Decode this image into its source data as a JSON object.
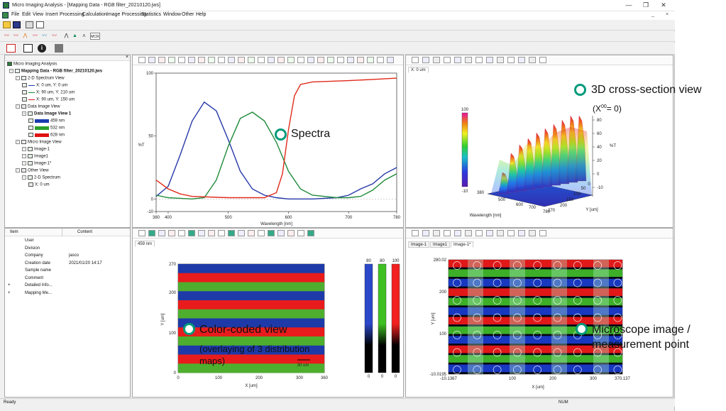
{
  "window": {
    "title": "Micro Imaging Analysis - [Mapping Data - RGB filter_20210120.jws]",
    "minimize": "—",
    "restore": "❒",
    "close": "✕"
  },
  "menu": [
    "File",
    "Edit",
    "View",
    "Insert",
    "Processing",
    "Calculation",
    "Image Processing",
    "Statistics",
    "Window",
    "Other",
    "Help"
  ],
  "menu_child_controls": [
    "_",
    "×"
  ],
  "tree": {
    "root": "Micro Imaging Analysis",
    "nodes": [
      {
        "label": "Mapping Data - RGB filter_20210120.jws",
        "level": 0,
        "bold": true
      },
      {
        "label": "2-D Spectrum View",
        "level": 1
      },
      {
        "label": "X: 0 um, Y: 0 um",
        "level": 2,
        "color": "#1a3cb0"
      },
      {
        "label": "X: 90 um, Y: 210 um",
        "level": 2,
        "color": "#1a8a2a"
      },
      {
        "label": "X: 90 um, Y: 150 um",
        "level": 2,
        "color": "#d81a1a"
      },
      {
        "label": "Data Image View",
        "level": 1
      },
      {
        "label": "Data Image View 1",
        "level": 2,
        "bold": true
      },
      {
        "label": "459 nm",
        "level": 3,
        "color": "#1a3cb0"
      },
      {
        "label": "532 nm",
        "level": 3,
        "color": "#2aa02a"
      },
      {
        "label": "628 nm",
        "level": 3,
        "color": "#e01010"
      },
      {
        "label": "Micro Image View",
        "level": 1
      },
      {
        "label": "Image-1",
        "level": 2
      },
      {
        "label": "Image1",
        "level": 2
      },
      {
        "label": "Image-1*",
        "level": 2
      },
      {
        "label": "Other View",
        "level": 1
      },
      {
        "label": "2-D Spectrum",
        "level": 2
      },
      {
        "label": "X: 0 um",
        "level": 3
      }
    ]
  },
  "props": {
    "headers": [
      "Item",
      "Content"
    ],
    "rows": [
      {
        "item": "User",
        "content": ""
      },
      {
        "item": "Division",
        "content": ""
      },
      {
        "item": "Company",
        "content": "jasco"
      },
      {
        "item": "Creation date",
        "content": "2021/01/20 14:17"
      },
      {
        "item": "Sample name",
        "content": ""
      },
      {
        "item": "Comment",
        "content": ""
      },
      {
        "item": "Detailed Info...",
        "content": "",
        "expander": "+"
      },
      {
        "item": "Mapping Me...",
        "content": "",
        "expander": "+"
      }
    ]
  },
  "panes": {
    "cross_section_tab": "X: 0 um",
    "color_view_tab": "459 nm",
    "micro_tabs": [
      "Image-1",
      "Image1",
      "Image-1*"
    ]
  },
  "status": {
    "left": "Ready",
    "right": "NUM"
  },
  "annotations": {
    "spectra": "Spectra",
    "cross_section": "3D cross-section view",
    "cross_section_sub": "(X",
    "cross_section_sub2": "= 0)",
    "cross_section_sup": "00",
    "color_coded_1": "Color-coded view",
    "color_coded_2": "(overlaying of 3 distribution",
    "color_coded_3": "maps)",
    "microscope_1": "Microscope image /",
    "microscope_2": "measurement point"
  },
  "spectrum_chart": {
    "ylabel": "%T",
    "xlabel": "Wavelength [nm]",
    "xlim": [
      380,
      780
    ],
    "ylim": [
      -10,
      100
    ],
    "xticks": [
      380,
      400,
      500,
      600,
      700,
      780
    ],
    "yticks": [
      100,
      50,
      0,
      -10
    ],
    "series": [
      {
        "color": "#2638a8",
        "points": [
          [
            380,
            2
          ],
          [
            400,
            10
          ],
          [
            420,
            35
          ],
          [
            440,
            62
          ],
          [
            460,
            77
          ],
          [
            480,
            70
          ],
          [
            500,
            47
          ],
          [
            520,
            22
          ],
          [
            540,
            8
          ],
          [
            560,
            3
          ],
          [
            580,
            1
          ],
          [
            600,
            0
          ],
          [
            640,
            0
          ],
          [
            680,
            1
          ],
          [
            700,
            3
          ],
          [
            720,
            8
          ],
          [
            740,
            12
          ],
          [
            760,
            20
          ],
          [
            780,
            25
          ]
        ]
      },
      {
        "color": "#1f8a3a",
        "points": [
          [
            380,
            3
          ],
          [
            400,
            1
          ],
          [
            440,
            0
          ],
          [
            460,
            1
          ],
          [
            480,
            15
          ],
          [
            500,
            42
          ],
          [
            520,
            64
          ],
          [
            540,
            69
          ],
          [
            560,
            62
          ],
          [
            580,
            45
          ],
          [
            600,
            22
          ],
          [
            620,
            8
          ],
          [
            640,
            3
          ],
          [
            660,
            2
          ],
          [
            680,
            1
          ],
          [
            700,
            1
          ],
          [
            720,
            2
          ],
          [
            740,
            7
          ],
          [
            760,
            15
          ],
          [
            780,
            20
          ]
        ]
      },
      {
        "color": "#e02a1a",
        "points": [
          [
            380,
            15
          ],
          [
            400,
            8
          ],
          [
            420,
            4
          ],
          [
            440,
            2
          ],
          [
            500,
            1
          ],
          [
            560,
            1
          ],
          [
            580,
            5
          ],
          [
            590,
            20
          ],
          [
            600,
            55
          ],
          [
            610,
            82
          ],
          [
            620,
            91
          ],
          [
            640,
            93
          ],
          [
            700,
            94
          ],
          [
            740,
            95
          ],
          [
            780,
            96
          ]
        ]
      }
    ]
  },
  "cross_section_chart": {
    "zlabel": "%T",
    "xlabel": "Wavelength [nm]",
    "ylabel": "Y [um]",
    "colorbar": {
      "max": "100",
      "min": "-10"
    },
    "z_ticks": [
      "80",
      "60",
      "40",
      "20",
      "0",
      "-10"
    ],
    "x_ticks": [
      "380",
      "500",
      "600",
      "700",
      "780"
    ],
    "y_ticks": [
      "270",
      "200",
      "150",
      "100",
      "50",
      "0"
    ]
  },
  "color_coded_chart": {
    "xlabel": "X [um]",
    "ylabel": "Y [um]",
    "xticks": [
      "0",
      "100",
      "200",
      "300",
      "360"
    ],
    "yticks": [
      "270",
      "200",
      "100",
      "0"
    ],
    "scalebar": "30 um",
    "bands": [
      "#1d3aa8",
      "#e81c1c",
      "#4eae2e",
      "#1d3aa8",
      "#e81c1c",
      "#4eae2e",
      "#1d3aa8",
      "#e81c1c",
      "#4eae2e",
      "#1d3aa8",
      "#e81c1c",
      "#4eae2e"
    ],
    "colorbars": [
      {
        "color": "#2a48c8",
        "top": "80",
        "bottom": "0"
      },
      {
        "color": "#3ec022",
        "top": "80",
        "bottom": "0"
      },
      {
        "color": "#f22020",
        "top": "100",
        "bottom": "0"
      }
    ]
  },
  "microscope_chart": {
    "xlabel": "X [um]",
    "ylabel": "Y [um]",
    "xticks": [
      "-10.1367",
      "100",
      "200",
      "300",
      "370.137"
    ],
    "yticks": [
      "280.02",
      "200",
      "100",
      "-10.0195"
    ]
  }
}
